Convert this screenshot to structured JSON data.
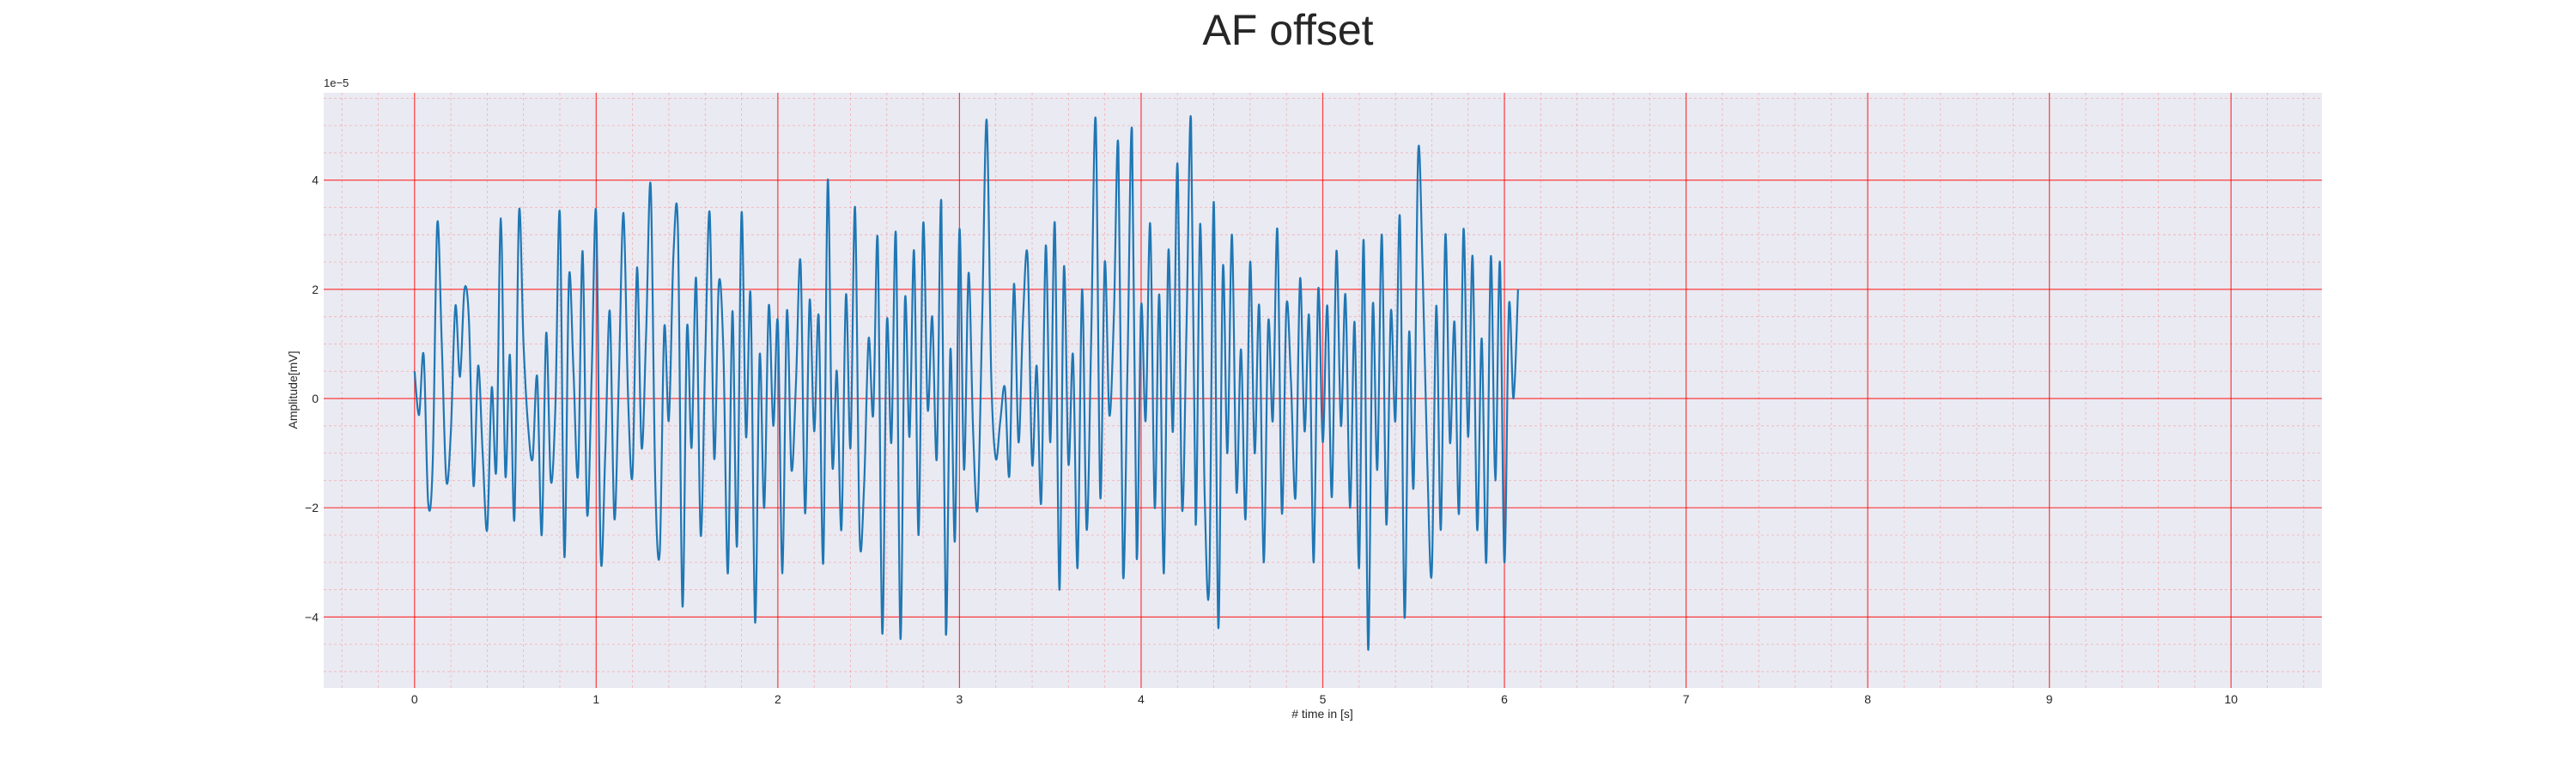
{
  "chart_data": {
    "type": "line",
    "title": "AF offset",
    "xlabel": "# time in [s]",
    "ylabel": "Amplitude[mV]",
    "y_scale_label": "1e−5",
    "y_multiplier": 1e-05,
    "xlim": [
      -0.5,
      10.5
    ],
    "ylim": [
      -5.3,
      5.6
    ],
    "x_ticks": [
      0,
      1,
      2,
      3,
      4,
      5,
      6,
      7,
      8,
      9,
      10
    ],
    "x_tick_labels": [
      "0",
      "1",
      "2",
      "3",
      "4",
      "5",
      "6",
      "7",
      "8",
      "9",
      "10"
    ],
    "y_ticks": [
      -4,
      -2,
      0,
      2,
      4
    ],
    "y_tick_labels": [
      "−4",
      "−2",
      "0",
      "2",
      "4"
    ],
    "grid": "major and minor, red",
    "colors": {
      "series": "#1f77b4",
      "plot_background": "#eaeaf2",
      "major_grid": "#ff0000",
      "minor_grid": "#ff6b6b"
    },
    "series": [
      {
        "name": "AF offset",
        "x_start": 0,
        "x_step": 0.025,
        "values": [
          0.5,
          -0.3,
          0.8,
          -1.9,
          -1.2,
          3.2,
          1.0,
          -1.5,
          -0.6,
          1.7,
          0.4,
          2.0,
          1.4,
          -1.6,
          0.6,
          -1.0,
          -2.4,
          0.2,
          -1.3,
          3.3,
          -1.4,
          0.8,
          -2.2,
          3.4,
          1.0,
          -0.5,
          -1.1,
          0.4,
          -2.5,
          1.2,
          -1.5,
          -0.2,
          3.4,
          -2.9,
          2.2,
          0.5,
          -1.4,
          2.7,
          -2.1,
          0.4,
          3.4,
          -2.9,
          -1.0,
          1.6,
          -2.2,
          0.4,
          3.4,
          0.1,
          -1.4,
          2.4,
          -0.9,
          1.2,
          3.9,
          -1.5,
          -2.8,
          1.3,
          -0.4,
          2.6,
          3.1,
          -3.8,
          1.3,
          -0.9,
          2.2,
          -2.5,
          0.7,
          3.4,
          -1.1,
          2.1,
          0.9,
          -3.2,
          1.6,
          -2.7,
          3.4,
          -0.7,
          1.9,
          -4.1,
          0.8,
          -2.0,
          1.7,
          -0.5,
          1.4,
          -3.2,
          1.6,
          -1.3,
          0.3,
          2.5,
          -2.1,
          1.8,
          -0.6,
          1.5,
          -3.0,
          4.0,
          -1.2,
          0.5,
          -2.4,
          1.9,
          -0.9,
          3.5,
          -2.5,
          -1.6,
          1.1,
          -0.3,
          2.9,
          -4.3,
          1.4,
          -0.8,
          3.0,
          -4.4,
          1.8,
          -0.7,
          2.7,
          -2.5,
          3.2,
          -0.2,
          1.5,
          -1.1,
          3.6,
          -4.3,
          0.9,
          -2.6,
          3.1,
          -1.3,
          2.3,
          -0.6,
          -2.0,
          1.5,
          5.1,
          0.4,
          -1.1,
          -0.4,
          0.2,
          -1.4,
          2.1,
          -0.8,
          1.5,
          2.6,
          -1.2,
          0.6,
          -1.9,
          2.8,
          -0.8,
          3.2,
          -3.5,
          2.4,
          -1.2,
          0.8,
          -3.1,
          2.0,
          -2.4,
          1.1,
          5.1,
          -1.8,
          2.5,
          -0.3,
          1.5,
          4.6,
          -3.2,
          0.6,
          4.9,
          -2.9,
          1.7,
          -0.4,
          3.2,
          -2.0,
          1.9,
          -3.2,
          2.7,
          -0.6,
          4.3,
          -2.0,
          1.3,
          5.1,
          -2.3,
          3.2,
          -1.8,
          -3.4,
          3.6,
          -4.2,
          2.4,
          -1.0,
          3.0,
          -1.7,
          0.9,
          -2.2,
          2.5,
          -1.0,
          1.7,
          -3.0,
          1.4,
          -0.4,
          3.1,
          -2.1,
          1.7,
          0.3,
          -1.8,
          2.2,
          -0.6,
          1.5,
          -3.0,
          2.0,
          -0.8,
          1.7,
          -1.8,
          2.7,
          -0.5,
          1.9,
          -2.0,
          1.4,
          -3.1,
          2.9,
          -4.6,
          1.7,
          -1.3,
          3.0,
          -2.3,
          1.6,
          -0.4,
          3.3,
          -4.0,
          1.2,
          -1.6,
          4.5,
          2.3,
          -1.1,
          -3.2,
          1.7,
          -2.4,
          3.0,
          -0.8,
          1.4,
          -2.1,
          3.1,
          -0.7,
          2.6,
          -2.4,
          1.1,
          -3.0,
          2.6,
          -1.5,
          2.5,
          -3.0,
          1.7,
          0.0,
          2.0
        ]
      }
    ]
  }
}
